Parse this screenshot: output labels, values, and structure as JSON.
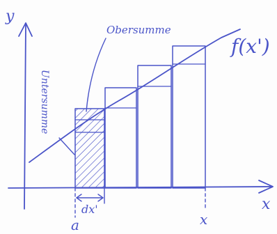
{
  "labels": {
    "y_axis": "y",
    "x_axis": "x",
    "function": "f(x')",
    "obersumme": "Obersumme",
    "untersumme": "Untersumme",
    "dx": "dx'",
    "a": "a",
    "x_end": "x"
  },
  "colors": {
    "ink": "#4a54c8",
    "paper": "#fdfdfd"
  }
}
